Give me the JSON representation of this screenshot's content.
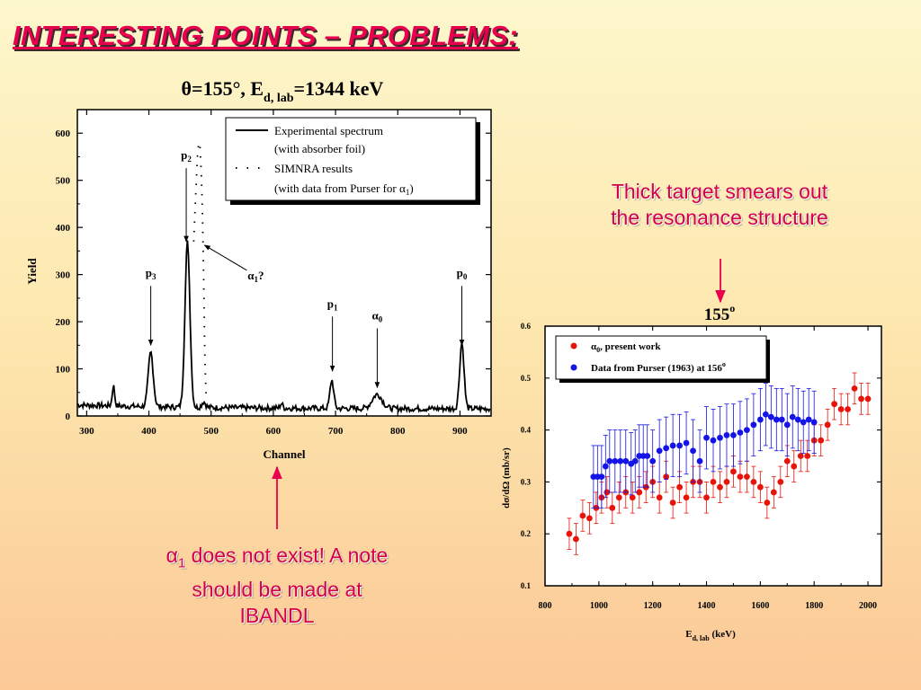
{
  "slide": {
    "title": "INTERESTING POINTS – PROBLEMS:",
    "note_right": "Thick target smears out the resonance structure",
    "note_left_rest": " does not exist! A note should be made at IBANDL",
    "accent_color": "#e8004e",
    "note_color": "#d4004a"
  },
  "chart_data": [
    {
      "type": "line",
      "title": "θ=155°, E",
      "title_subscript": "d, lab",
      "title_suffix": "=1344 keV",
      "xlabel": "Channel",
      "ylabel": "Yield",
      "xlim": [
        285,
        950
      ],
      "ylim": [
        0,
        650
      ],
      "xticks": [
        300,
        400,
        500,
        600,
        700,
        800,
        900
      ],
      "yticks": [
        0,
        100,
        200,
        300,
        400,
        500,
        600
      ],
      "legend_position": "top-right",
      "series": [
        {
          "name": "Experimental spectrum",
          "name_line2": "(with absorber foil)",
          "style": "solid",
          "peaks": [
            {
              "x": 343,
              "y": 42,
              "w": 2.0
            },
            {
              "x": 403,
              "y": 115,
              "w": 4.0
            },
            {
              "x": 462,
              "y": 350,
              "w": 4.0
            },
            {
              "x": 488,
              "y": 12,
              "w": 3
            },
            {
              "x": 613,
              "y": 10,
              "w": 2
            },
            {
              "x": 694,
              "y": 60,
              "w": 3.0
            },
            {
              "x": 767,
              "y": 30,
              "w": 8
            },
            {
              "x": 903,
              "y": 140,
              "w": 3.5
            }
          ]
        },
        {
          "name": "SIMNRA results",
          "name_line2": "(with data from Purser for α",
          "name_line2_sub": "1",
          "name_line2_end": ")",
          "style": "dotted",
          "x": [
            472,
            474,
            476,
            478,
            480,
            482,
            484,
            486,
            488,
            490,
            492
          ],
          "y": [
            370,
            430,
            490,
            550,
            580,
            575,
            520,
            440,
            300,
            120,
            40
          ]
        }
      ],
      "annotations": [
        {
          "label": "p",
          "sub": "2",
          "x": 460,
          "y": 370,
          "text_y": 545
        },
        {
          "label": "p",
          "sub": "3",
          "x": 403,
          "y": 150,
          "text_y": 295
        },
        {
          "label": "α",
          "sub": "1",
          "suffix": "?",
          "x": 485,
          "y": 370,
          "text_y": 290
        },
        {
          "label": "p",
          "sub": "1",
          "x": 695,
          "y": 95,
          "text_y": 230
        },
        {
          "label": "α",
          "sub": "0",
          "x": 767,
          "y": 60,
          "text_y": 205
        },
        {
          "label": "p",
          "sub": "0",
          "x": 903,
          "y": 150,
          "text_y": 295
        }
      ]
    },
    {
      "type": "scatter",
      "title": "155",
      "title_sup": "o",
      "xlabel": "E",
      "xlabel_sub": "d, lab",
      "xlabel_suffix": " (keV)",
      "ylabel": "dσ/dΩ (mb/sr)",
      "xlim": [
        800,
        2050
      ],
      "ylim": [
        0.1,
        0.6
      ],
      "xticks": [
        800,
        1000,
        1200,
        1400,
        1600,
        1800,
        2000
      ],
      "yticks": [
        0.1,
        0.2,
        0.3,
        0.4,
        0.5,
        0.6
      ],
      "legend_position": "top-left",
      "series": [
        {
          "name": "α",
          "name_sub": "0",
          "name_suffix": ", present work",
          "color": "#e8140a",
          "x": [
            890,
            915,
            940,
            965,
            990,
            1010,
            1030,
            1050,
            1075,
            1100,
            1125,
            1150,
            1175,
            1200,
            1225,
            1250,
            1275,
            1300,
            1325,
            1350,
            1375,
            1400,
            1425,
            1450,
            1475,
            1500,
            1525,
            1550,
            1575,
            1600,
            1625,
            1650,
            1675,
            1700,
            1725,
            1750,
            1775,
            1800,
            1825,
            1850,
            1875,
            1900,
            1925,
            1950,
            1975,
            2000
          ],
          "y": [
            0.2,
            0.19,
            0.235,
            0.23,
            0.25,
            0.27,
            0.28,
            0.25,
            0.27,
            0.28,
            0.27,
            0.28,
            0.29,
            0.3,
            0.27,
            0.31,
            0.26,
            0.29,
            0.27,
            0.3,
            0.3,
            0.27,
            0.3,
            0.29,
            0.3,
            0.32,
            0.31,
            0.31,
            0.3,
            0.29,
            0.26,
            0.28,
            0.3,
            0.34,
            0.33,
            0.35,
            0.35,
            0.38,
            0.38,
            0.41,
            0.45,
            0.44,
            0.44,
            0.48,
            0.46,
            0.46
          ],
          "err": 0.03
        },
        {
          "name": "Data from Purser (1963) at 156",
          "name_sup": "o",
          "color": "#1414e6",
          "x": [
            980,
            995,
            1010,
            1025,
            1040,
            1060,
            1080,
            1100,
            1120,
            1135,
            1150,
            1165,
            1180,
            1200,
            1225,
            1250,
            1275,
            1300,
            1325,
            1350,
            1375,
            1400,
            1425,
            1450,
            1475,
            1500,
            1525,
            1550,
            1575,
            1600,
            1620,
            1640,
            1660,
            1680,
            1700,
            1720,
            1740,
            1760,
            1780,
            1800
          ],
          "y": [
            0.31,
            0.31,
            0.31,
            0.33,
            0.34,
            0.34,
            0.34,
            0.34,
            0.335,
            0.34,
            0.35,
            0.35,
            0.35,
            0.34,
            0.36,
            0.365,
            0.37,
            0.37,
            0.375,
            0.36,
            0.34,
            0.385,
            0.38,
            0.385,
            0.39,
            0.39,
            0.395,
            0.4,
            0.41,
            0.42,
            0.43,
            0.425,
            0.42,
            0.42,
            0.41,
            0.425,
            0.42,
            0.415,
            0.42,
            0.415
          ],
          "err": 0.06
        }
      ]
    }
  ]
}
